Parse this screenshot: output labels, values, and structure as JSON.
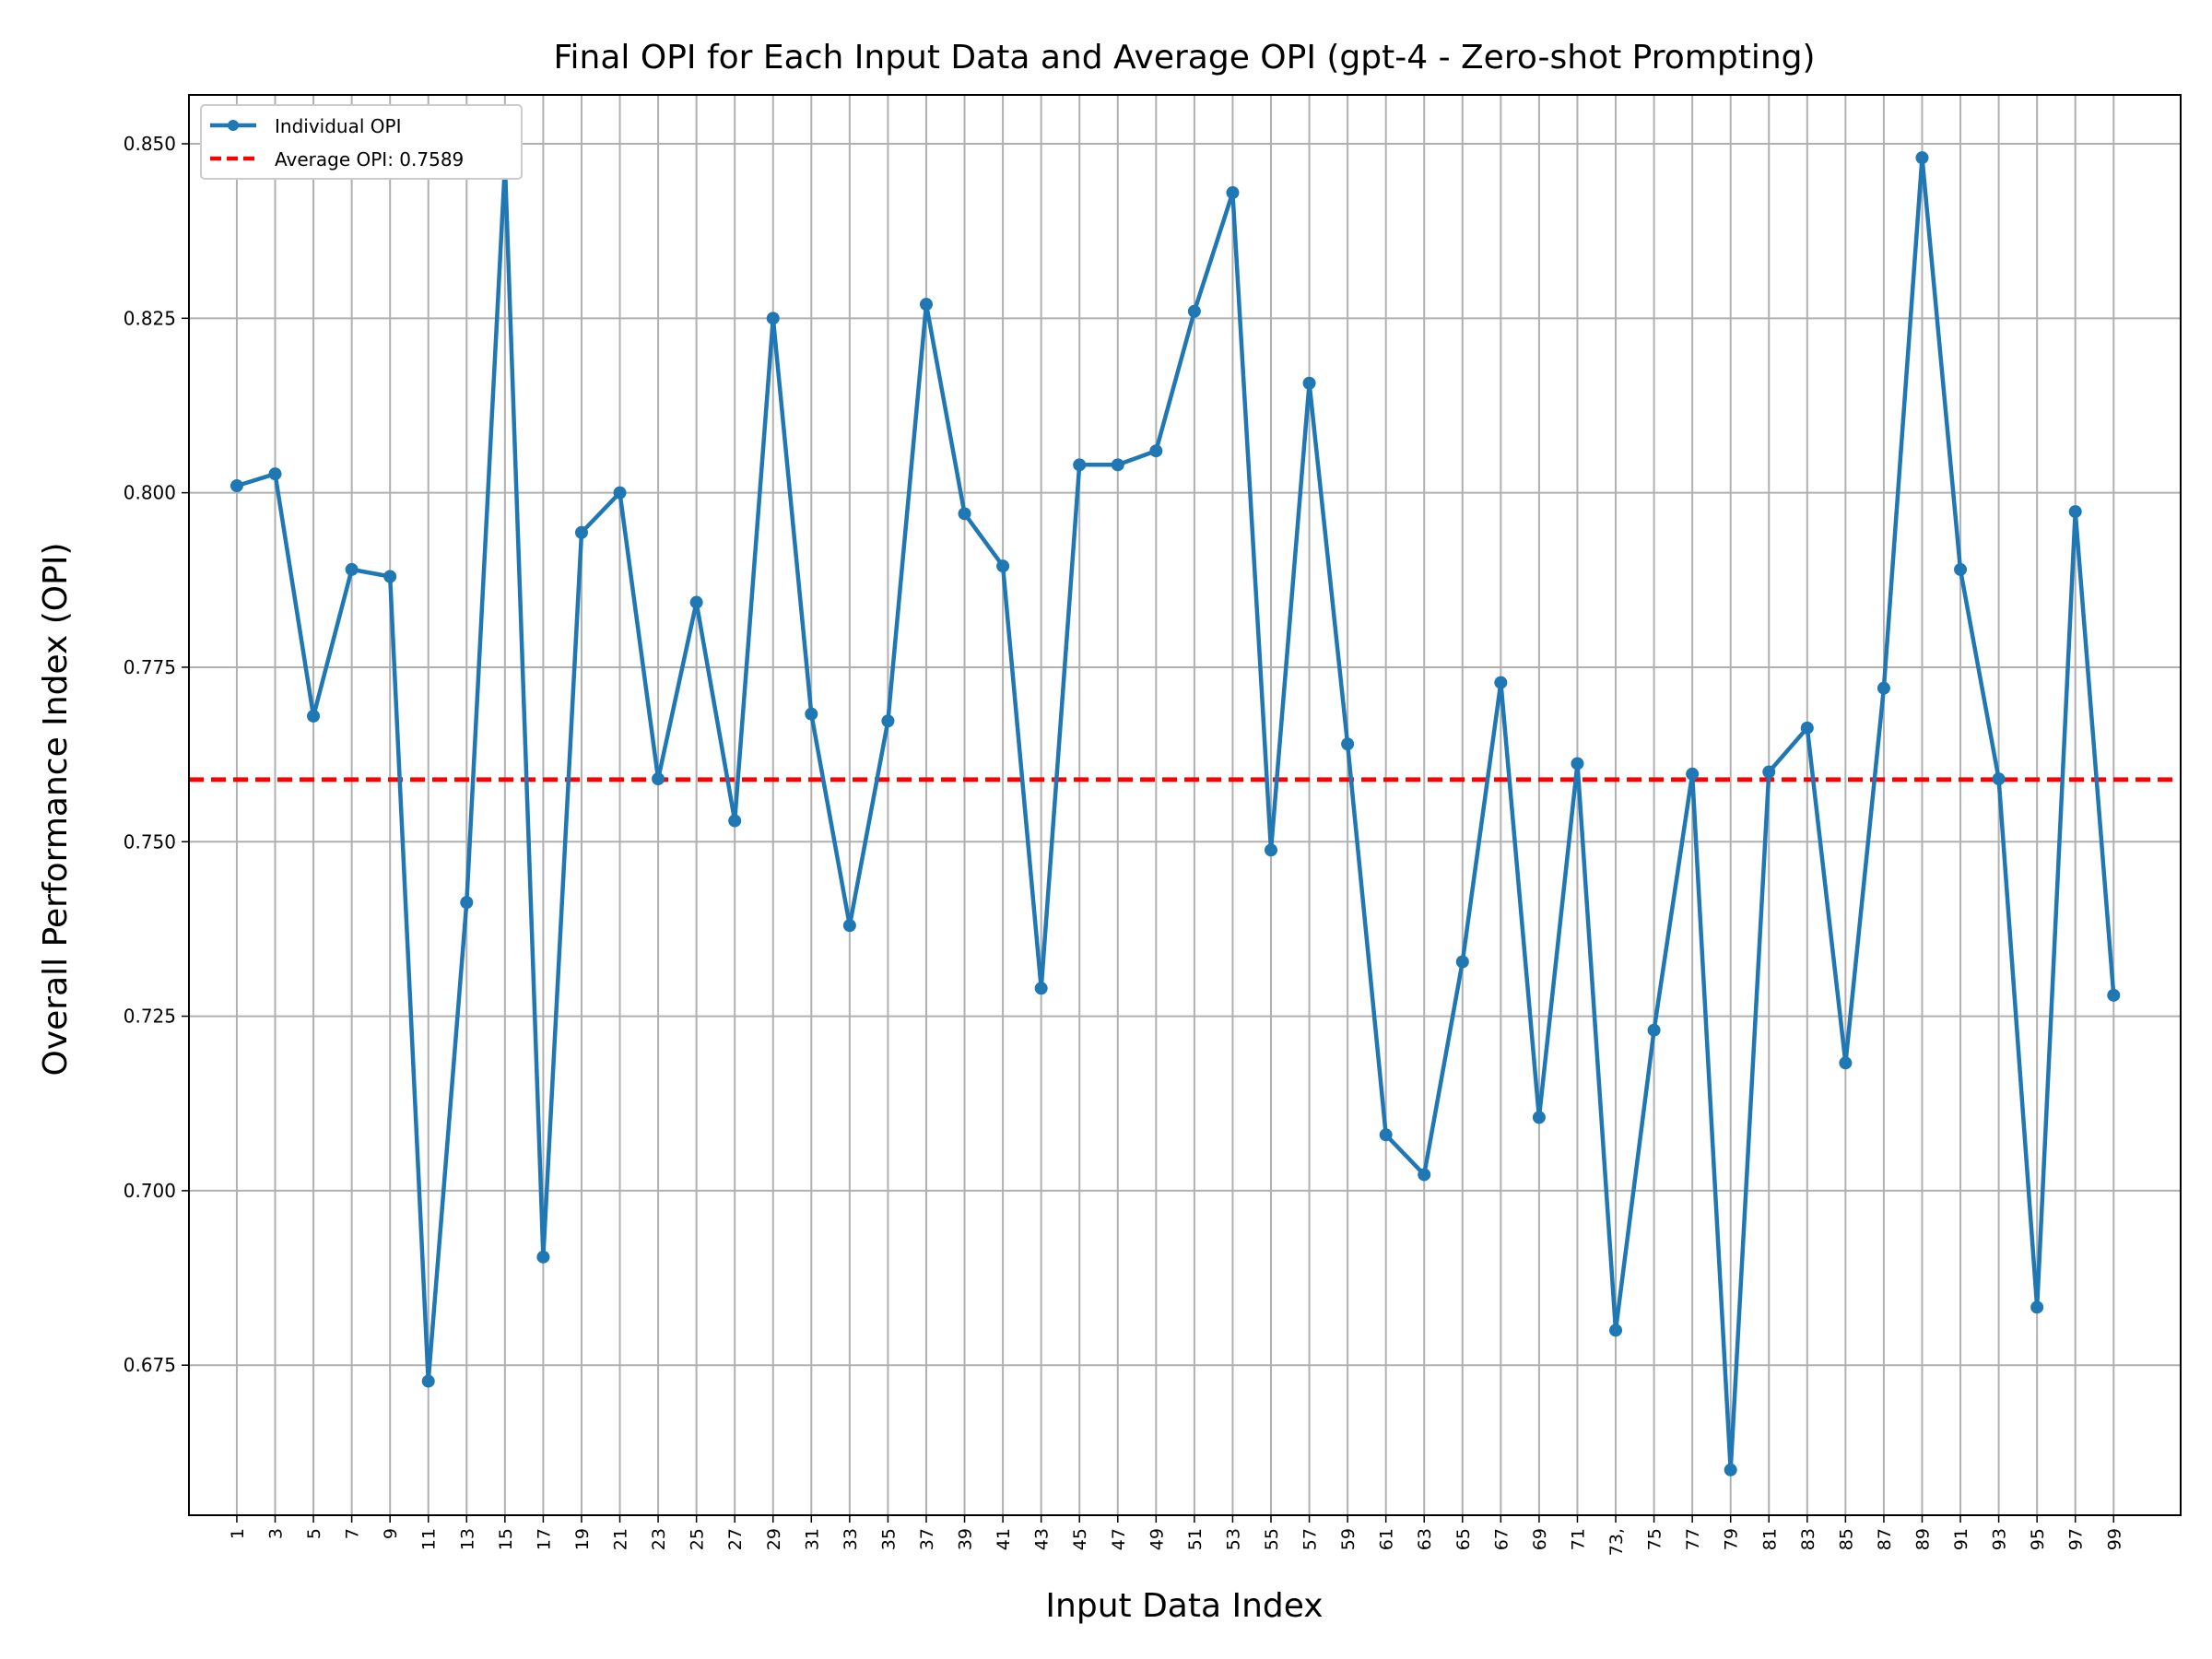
{
  "chart_data": {
    "type": "line",
    "title": "Final OPI for Each Input Data and Average OPI (gpt-4 - Zero-shot Prompting)",
    "xlabel": "Input Data Index",
    "ylabel": "Overall Performance Index (OPI)",
    "x": [
      1,
      3,
      5,
      7,
      9,
      11,
      13,
      15,
      17,
      19,
      21,
      23,
      25,
      27,
      29,
      31,
      33,
      35,
      37,
      39,
      41,
      43,
      45,
      47,
      49,
      51,
      53,
      55,
      57,
      59,
      61,
      63,
      65,
      67,
      69,
      71,
      73,
      75,
      77,
      79,
      81,
      83,
      85,
      87,
      89,
      91,
      93,
      95,
      97,
      99
    ],
    "xticks": [
      "1",
      "3",
      "5",
      "7",
      "9",
      "11",
      "13",
      "15",
      "17",
      "19",
      "21",
      "23",
      "25",
      "27",
      "29",
      "31",
      "33",
      "35",
      "37",
      "39",
      "41",
      "43",
      "45",
      "47",
      "49",
      "51",
      "53",
      "55",
      "57",
      "59",
      "61",
      "63",
      "65",
      "67",
      "69",
      "71",
      "73,",
      "75",
      "77",
      "79",
      "81",
      "83",
      "85",
      "87",
      "89",
      "91",
      "93",
      "95",
      "97",
      "99"
    ],
    "yticks": [
      "0.675",
      "0.700",
      "0.725",
      "0.750",
      "0.775",
      "0.800",
      "0.825",
      "0.850"
    ],
    "ytick_values": [
      0.675,
      0.7,
      0.725,
      0.75,
      0.775,
      0.8,
      0.825,
      0.85
    ],
    "ylim": [
      0.6535,
      0.857
    ],
    "xlim": [
      -1.5,
      102.5
    ],
    "grid": true,
    "legend_position": "top-left",
    "series": [
      {
        "name": "Individual OPI",
        "color": "#1f77b4",
        "values": [
          0.801,
          0.8027,
          0.768,
          0.789,
          0.788,
          0.6727,
          0.7413,
          0.847,
          0.6905,
          0.7943,
          0.8,
          0.759,
          0.7843,
          0.753,
          0.825,
          0.7683,
          0.738,
          0.7673,
          0.827,
          0.797,
          0.7895,
          0.729,
          0.804,
          0.804,
          0.806,
          0.826,
          0.843,
          0.7488,
          0.8157,
          0.764,
          0.708,
          0.7023,
          0.7328,
          0.7728,
          0.7105,
          0.7612,
          0.68,
          0.723,
          0.7597,
          0.66,
          0.76,
          0.7663,
          0.7183,
          0.772,
          0.848,
          0.789,
          0.759,
          0.6833,
          0.7973,
          0.728
        ]
      }
    ],
    "average": {
      "name": "Average OPI: 0.7589",
      "value": 0.7589,
      "color": "#ff0000"
    }
  }
}
